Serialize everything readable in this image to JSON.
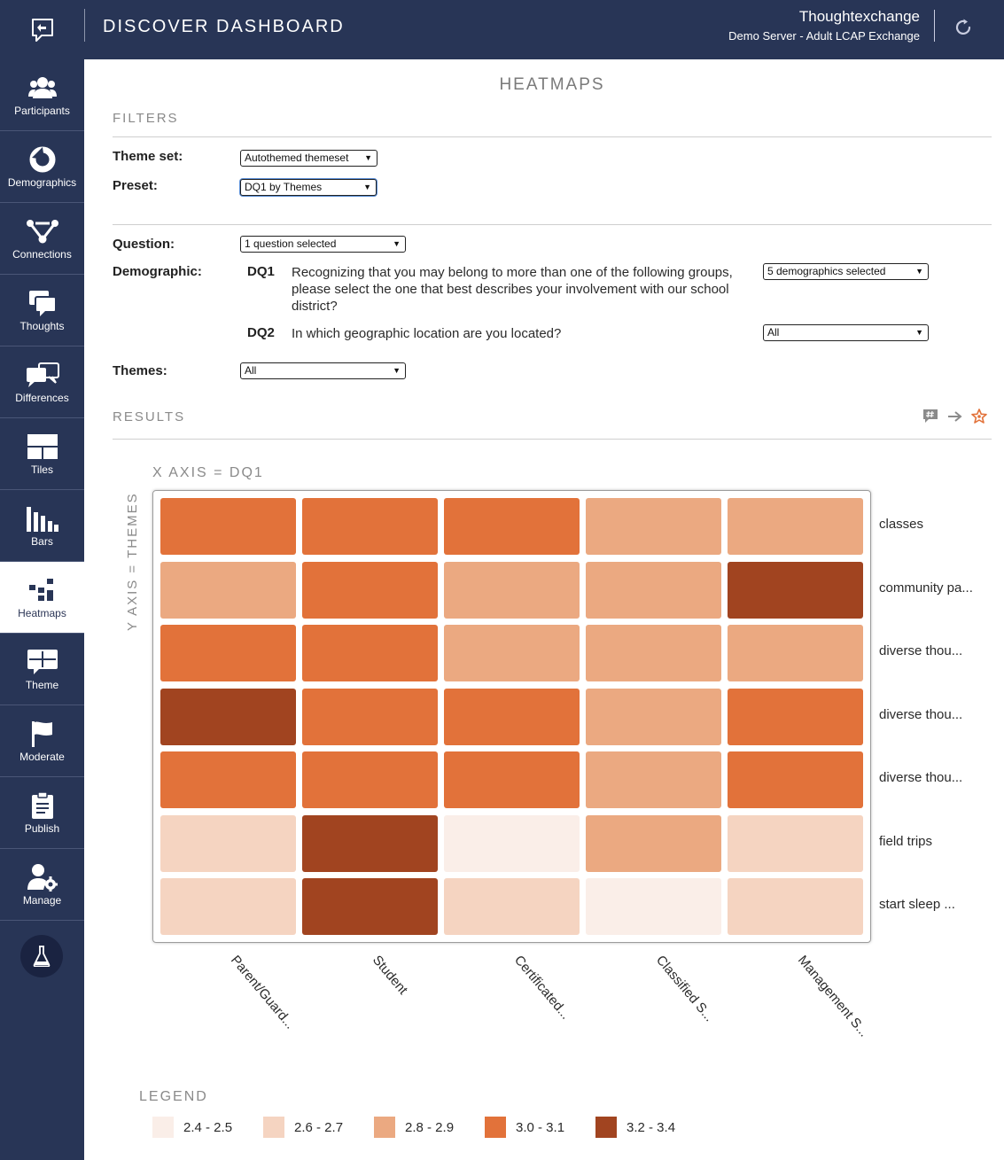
{
  "header": {
    "title": "DISCOVER DASHBOARD",
    "org_name": "Thoughtexchange",
    "server": "Demo Server - Adult LCAP Exchange"
  },
  "sidebar": {
    "items": [
      {
        "label": "Participants",
        "icon": "participants-icon"
      },
      {
        "label": "Demographics",
        "icon": "demographics-icon"
      },
      {
        "label": "Connections",
        "icon": "connections-icon"
      },
      {
        "label": "Thoughts",
        "icon": "thoughts-icon"
      },
      {
        "label": "Differences",
        "icon": "differences-icon"
      },
      {
        "label": "Tiles",
        "icon": "tiles-icon"
      },
      {
        "label": "Bars",
        "icon": "bars-icon"
      },
      {
        "label": "Heatmaps",
        "icon": "heatmaps-icon",
        "active": true
      },
      {
        "label": "Theme",
        "icon": "theme-icon"
      },
      {
        "label": "Moderate",
        "icon": "flag-icon"
      },
      {
        "label": "Publish",
        "icon": "clipboard-icon"
      },
      {
        "label": "Manage",
        "icon": "manage-user-gear-icon"
      }
    ]
  },
  "page": {
    "title": "HEATMAPS",
    "filters_label": "FILTERS",
    "results_label": "RESULTS"
  },
  "filters": {
    "theme_set_label": "Theme set:",
    "theme_set_value": "Autothemed themeset",
    "preset_label": "Preset:",
    "preset_value": "DQ1 by Themes",
    "question_label": "Question:",
    "question_value": "1 question selected",
    "demographic_label": "Demographic:",
    "dq1_code": "DQ1",
    "dq1_text": "Recognizing that you may belong to more than one of the following groups, please select the one that best describes your involvement with our school district?",
    "dq1_value": "5 demographics selected",
    "dq2_code": "DQ2",
    "dq2_text": "In which geographic location are you located?",
    "dq2_value": "All",
    "themes_label": "Themes:",
    "themes_value": "All"
  },
  "chart_data": {
    "type": "heatmap",
    "x_axis_label": "X AXIS = DQ1",
    "y_axis_label": "Y AXIS = THEMES",
    "columns": [
      "Parent/Guard...",
      "Student",
      "Certificated...",
      "Classified S...",
      "Management S..."
    ],
    "rows": [
      "classes",
      "community pa...",
      "diverse thou...",
      "diverse thou...",
      "diverse thou...",
      "field trips",
      "start sleep ..."
    ],
    "levels": [
      [
        3,
        3,
        3,
        2,
        2
      ],
      [
        2,
        3,
        2,
        2,
        4
      ],
      [
        3,
        3,
        2,
        2,
        2
      ],
      [
        4,
        3,
        3,
        2,
        3
      ],
      [
        3,
        3,
        3,
        2,
        3
      ],
      [
        1,
        4,
        0,
        2,
        1
      ],
      [
        1,
        4,
        1,
        0,
        1
      ]
    ],
    "legend": {
      "title": "LEGEND",
      "items": [
        {
          "range": "2.4 - 2.5",
          "color": "#faeee8"
        },
        {
          "range": "2.6 - 2.7",
          "color": "#f5d4c1"
        },
        {
          "range": "2.8 - 2.9",
          "color": "#eba981"
        },
        {
          "range": "3.0 - 3.1",
          "color": "#e2723a"
        },
        {
          "range": "3.2 - 3.4",
          "color": "#a14420"
        }
      ]
    }
  }
}
